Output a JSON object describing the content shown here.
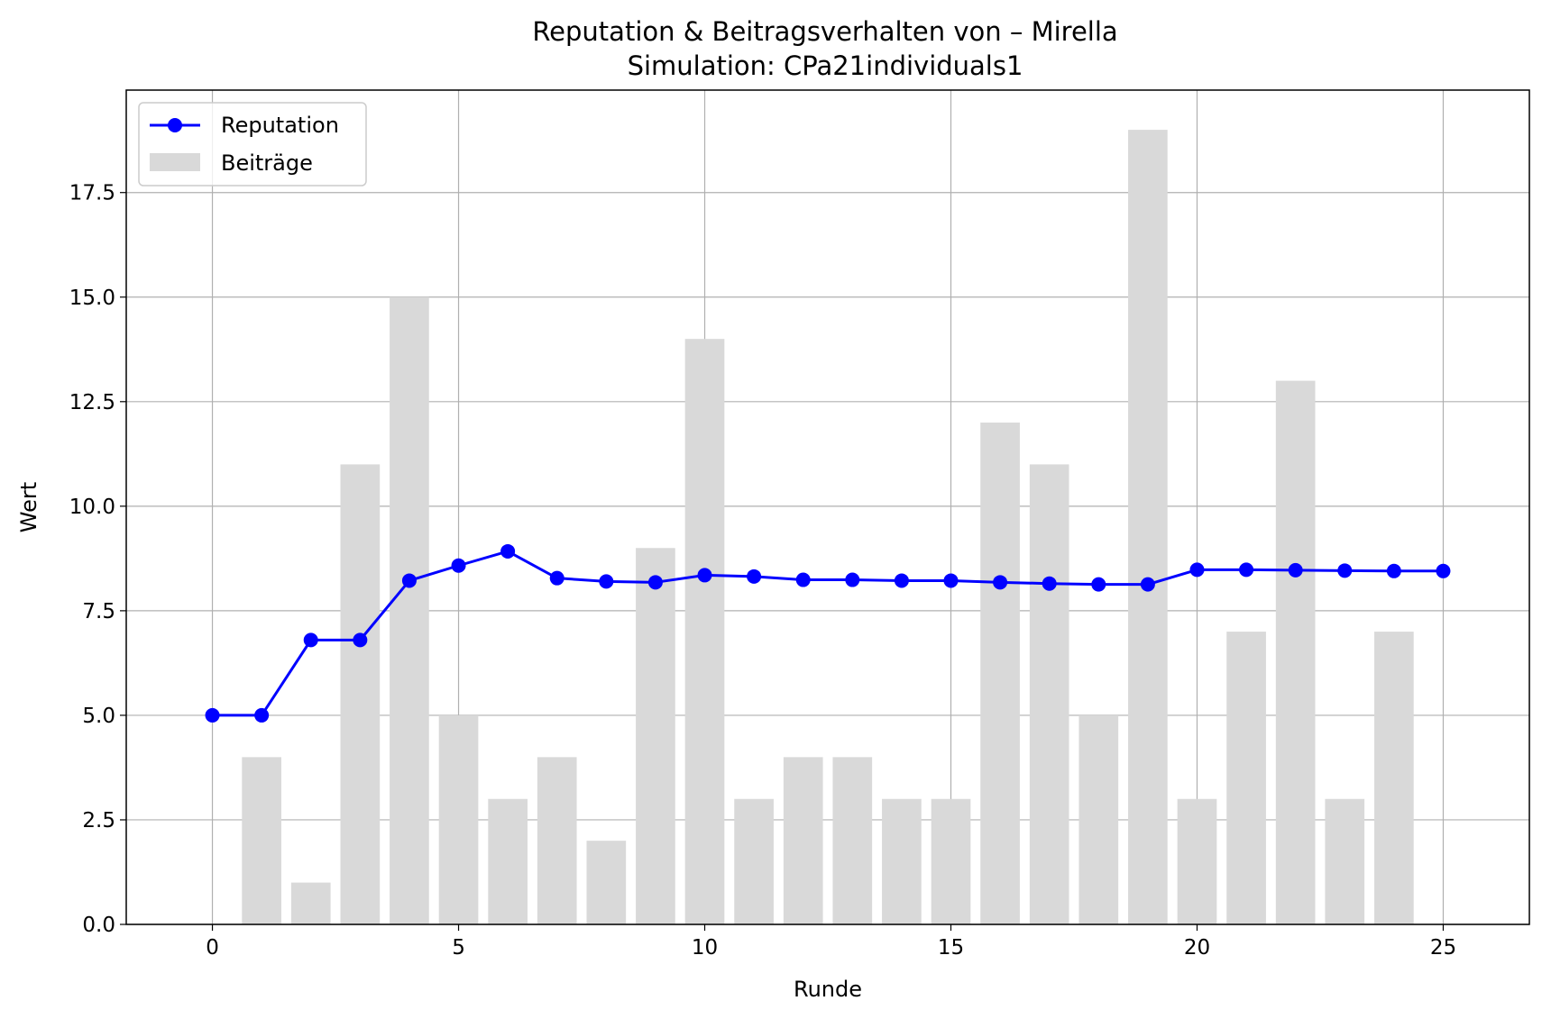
{
  "chart_data": {
    "type": "bar+line",
    "title": "Reputation & Beitragsverhalten von – Mirella",
    "subtitle": "Simulation: CPa21individuals1",
    "xlabel": "Runde",
    "ylabel": "Wert",
    "xlim": [
      -1.75,
      26.75
    ],
    "ylim": [
      0,
      19.95
    ],
    "x_ticks": [
      0,
      5,
      10,
      15,
      20,
      25
    ],
    "y_ticks": [
      0.0,
      2.5,
      5.0,
      7.5,
      10.0,
      12.5,
      15.0,
      17.5
    ],
    "x_tick_labels": [
      "0",
      "5",
      "10",
      "15",
      "20",
      "25"
    ],
    "y_tick_labels": [
      "0.0",
      "2.5",
      "5.0",
      "7.5",
      "10.0",
      "12.5",
      "15.0",
      "17.5"
    ],
    "grid": true,
    "legend_position": "upper-left",
    "series": [
      {
        "name": "Reputation",
        "kind": "line",
        "marker": "circle",
        "color": "#0000ff",
        "x": [
          0,
          1,
          2,
          3,
          4,
          5,
          6,
          7,
          8,
          9,
          10,
          11,
          12,
          13,
          14,
          15,
          16,
          17,
          18,
          19,
          20,
          21,
          22,
          23,
          24,
          25
        ],
        "values": [
          5.0,
          5.0,
          6.8,
          6.8,
          8.22,
          8.58,
          8.92,
          8.28,
          8.2,
          8.18,
          8.35,
          8.32,
          8.24,
          8.24,
          8.22,
          8.22,
          8.18,
          8.15,
          8.13,
          8.13,
          8.48,
          8.48,
          8.47,
          8.46,
          8.45,
          8.45
        ]
      },
      {
        "name": "Beiträge",
        "kind": "bar",
        "color": "#d9d9d9",
        "x": [
          1,
          2,
          3,
          4,
          5,
          6,
          7,
          8,
          9,
          10,
          11,
          12,
          13,
          14,
          15,
          16,
          17,
          18,
          19,
          20,
          21,
          22,
          23,
          24
        ],
        "values": [
          4,
          1,
          11,
          15,
          5,
          3,
          4,
          2,
          9,
          14,
          3,
          4,
          4,
          3,
          3,
          12,
          11,
          5,
          19,
          3,
          7,
          13,
          3,
          7
        ]
      }
    ]
  }
}
